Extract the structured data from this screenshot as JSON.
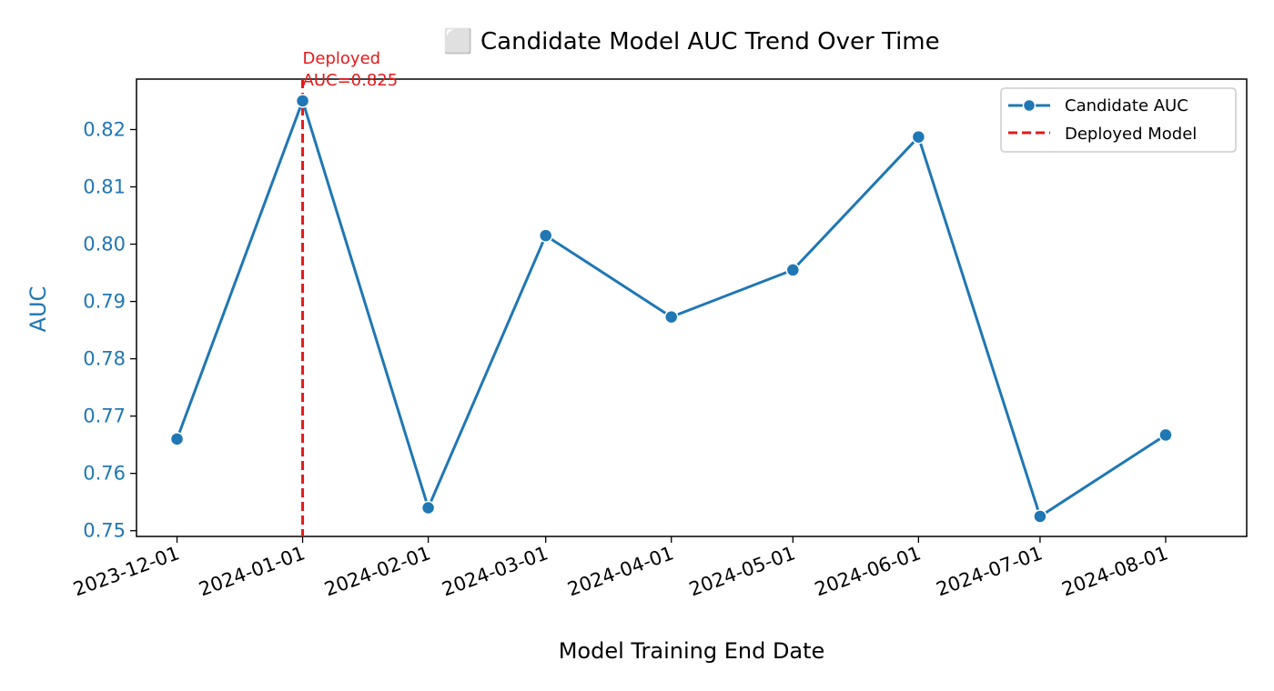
{
  "chart_data": {
    "type": "line",
    "title": "⬜ Candidate Model AUC Trend Over Time",
    "xlabel": "Model Training End Date",
    "ylabel": "AUC",
    "x": [
      "2023-12-01",
      "2024-01-01",
      "2024-02-01",
      "2024-03-01",
      "2024-04-01",
      "2024-05-01",
      "2024-06-01",
      "2024-07-01",
      "2024-08-01"
    ],
    "series": [
      {
        "name": "Candidate AUC",
        "color": "#1f77b4",
        "values": [
          0.766,
          0.825,
          0.754,
          0.8015,
          0.7873,
          0.7955,
          0.8187,
          0.7525,
          0.7667
        ]
      }
    ],
    "ylim": [
      0.749,
      0.8288
    ],
    "xlim": [
      "2023-11-21",
      "2024-08-21"
    ],
    "yticks": [
      0.75,
      0.76,
      0.77,
      0.78,
      0.79,
      0.8,
      0.81,
      0.82
    ],
    "ytick_labels": [
      "0.75",
      "0.76",
      "0.77",
      "0.78",
      "0.79",
      "0.80",
      "0.81",
      "0.82"
    ],
    "xtick_labels": [
      "2023-12-01",
      "2024-01-01",
      "2024-02-01",
      "2024-03-01",
      "2024-04-01",
      "2024-05-01",
      "2024-06-01",
      "2024-07-01",
      "2024-08-01"
    ],
    "deployed": {
      "date": "2024-01-01",
      "auc": 0.825,
      "label": "Deployed Model",
      "color": "#e31a1c",
      "annotation_line1": "Deployed",
      "annotation_line2": "AUC=0.825"
    },
    "legend_position": "upper-right",
    "legend": [
      "Candidate AUC",
      "Deployed Model"
    ],
    "grid": false,
    "ylabel_color": "#1f77b4"
  }
}
